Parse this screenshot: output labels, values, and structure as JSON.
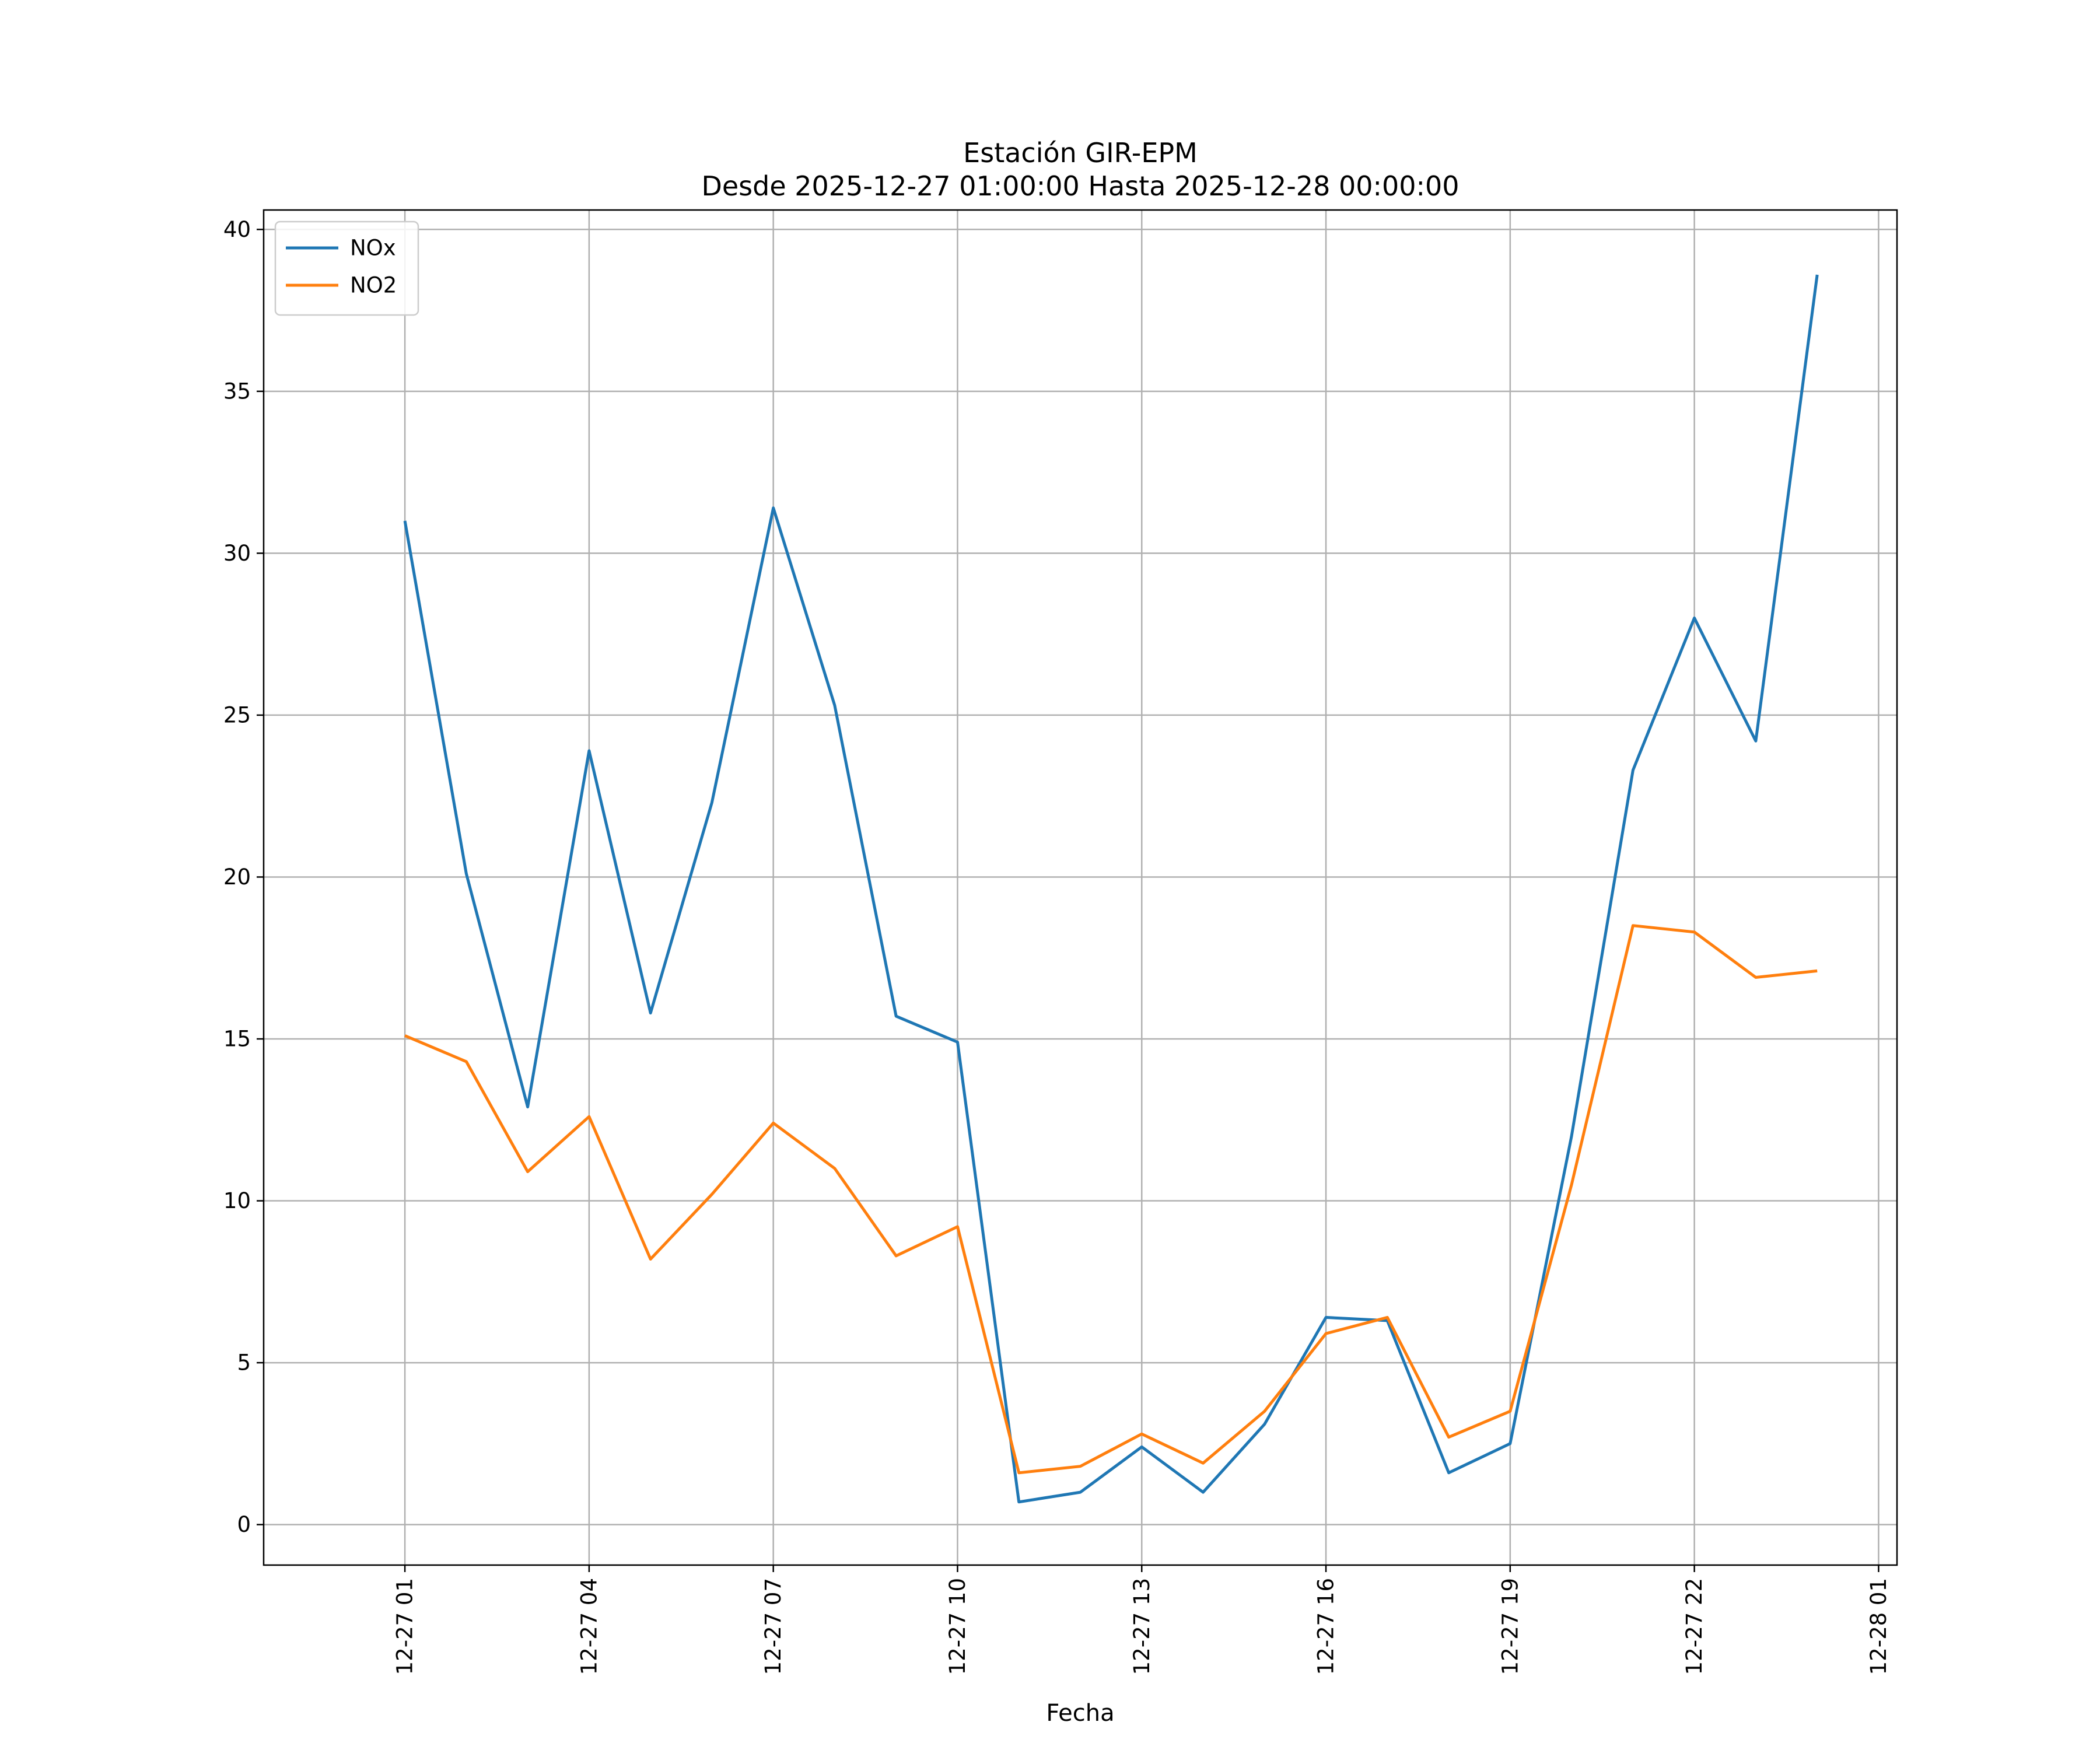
{
  "chart_data": {
    "type": "line",
    "title": "Estación GIR-EPM",
    "subtitle": "Desde 2025-12-27 01:00:00 Hasta 2025-12-28 00:00:00",
    "xlabel": "Fecha",
    "ylabel": "",
    "x": [
      "2025-12-27 01:00",
      "2025-12-27 02:00",
      "2025-12-27 03:00",
      "2025-12-27 04:00",
      "2025-12-27 05:00",
      "2025-12-27 06:00",
      "2025-12-27 07:00",
      "2025-12-27 08:00",
      "2025-12-27 09:00",
      "2025-12-27 10:00",
      "2025-12-27 11:00",
      "2025-12-27 12:00",
      "2025-12-27 13:00",
      "2025-12-27 14:00",
      "2025-12-27 15:00",
      "2025-12-27 16:00",
      "2025-12-27 17:00",
      "2025-12-27 18:00",
      "2025-12-27 19:00",
      "2025-12-27 20:00",
      "2025-12-27 21:00",
      "2025-12-27 22:00",
      "2025-12-27 23:00",
      "2025-12-28 00:00"
    ],
    "series": [
      {
        "name": "NOx",
        "color": "#1f77b4",
        "values": [
          31.0,
          20.1,
          12.9,
          23.9,
          15.8,
          22.3,
          31.4,
          25.3,
          15.7,
          14.9,
          0.7,
          1.0,
          2.4,
          1.0,
          3.1,
          6.4,
          6.3,
          1.6,
          2.5,
          12.0,
          23.3,
          28.0,
          24.2,
          38.6
        ]
      },
      {
        "name": "NO2",
        "color": "#ff7f0e",
        "values": [
          15.1,
          14.3,
          10.9,
          12.6,
          8.2,
          10.2,
          12.4,
          11.0,
          8.3,
          9.2,
          1.6,
          1.8,
          2.8,
          1.9,
          3.5,
          5.9,
          6.4,
          2.7,
          3.5,
          10.5,
          18.5,
          18.3,
          16.9,
          17.1
        ]
      }
    ],
    "xlim": [
      "2025-12-26 22:42",
      "2025-12-28 01:18"
    ],
    "ylim": [
      -1.25,
      40.6
    ],
    "xticks": [
      "12-27 01",
      "12-27 04",
      "12-27 07",
      "12-27 10",
      "12-27 13",
      "12-27 16",
      "12-27 19",
      "12-27 22",
      "12-28 01"
    ],
    "yticks": [
      "0",
      "5",
      "10",
      "15",
      "20",
      "25",
      "30",
      "35",
      "40"
    ],
    "grid": true,
    "legend_position": "top-left"
  }
}
